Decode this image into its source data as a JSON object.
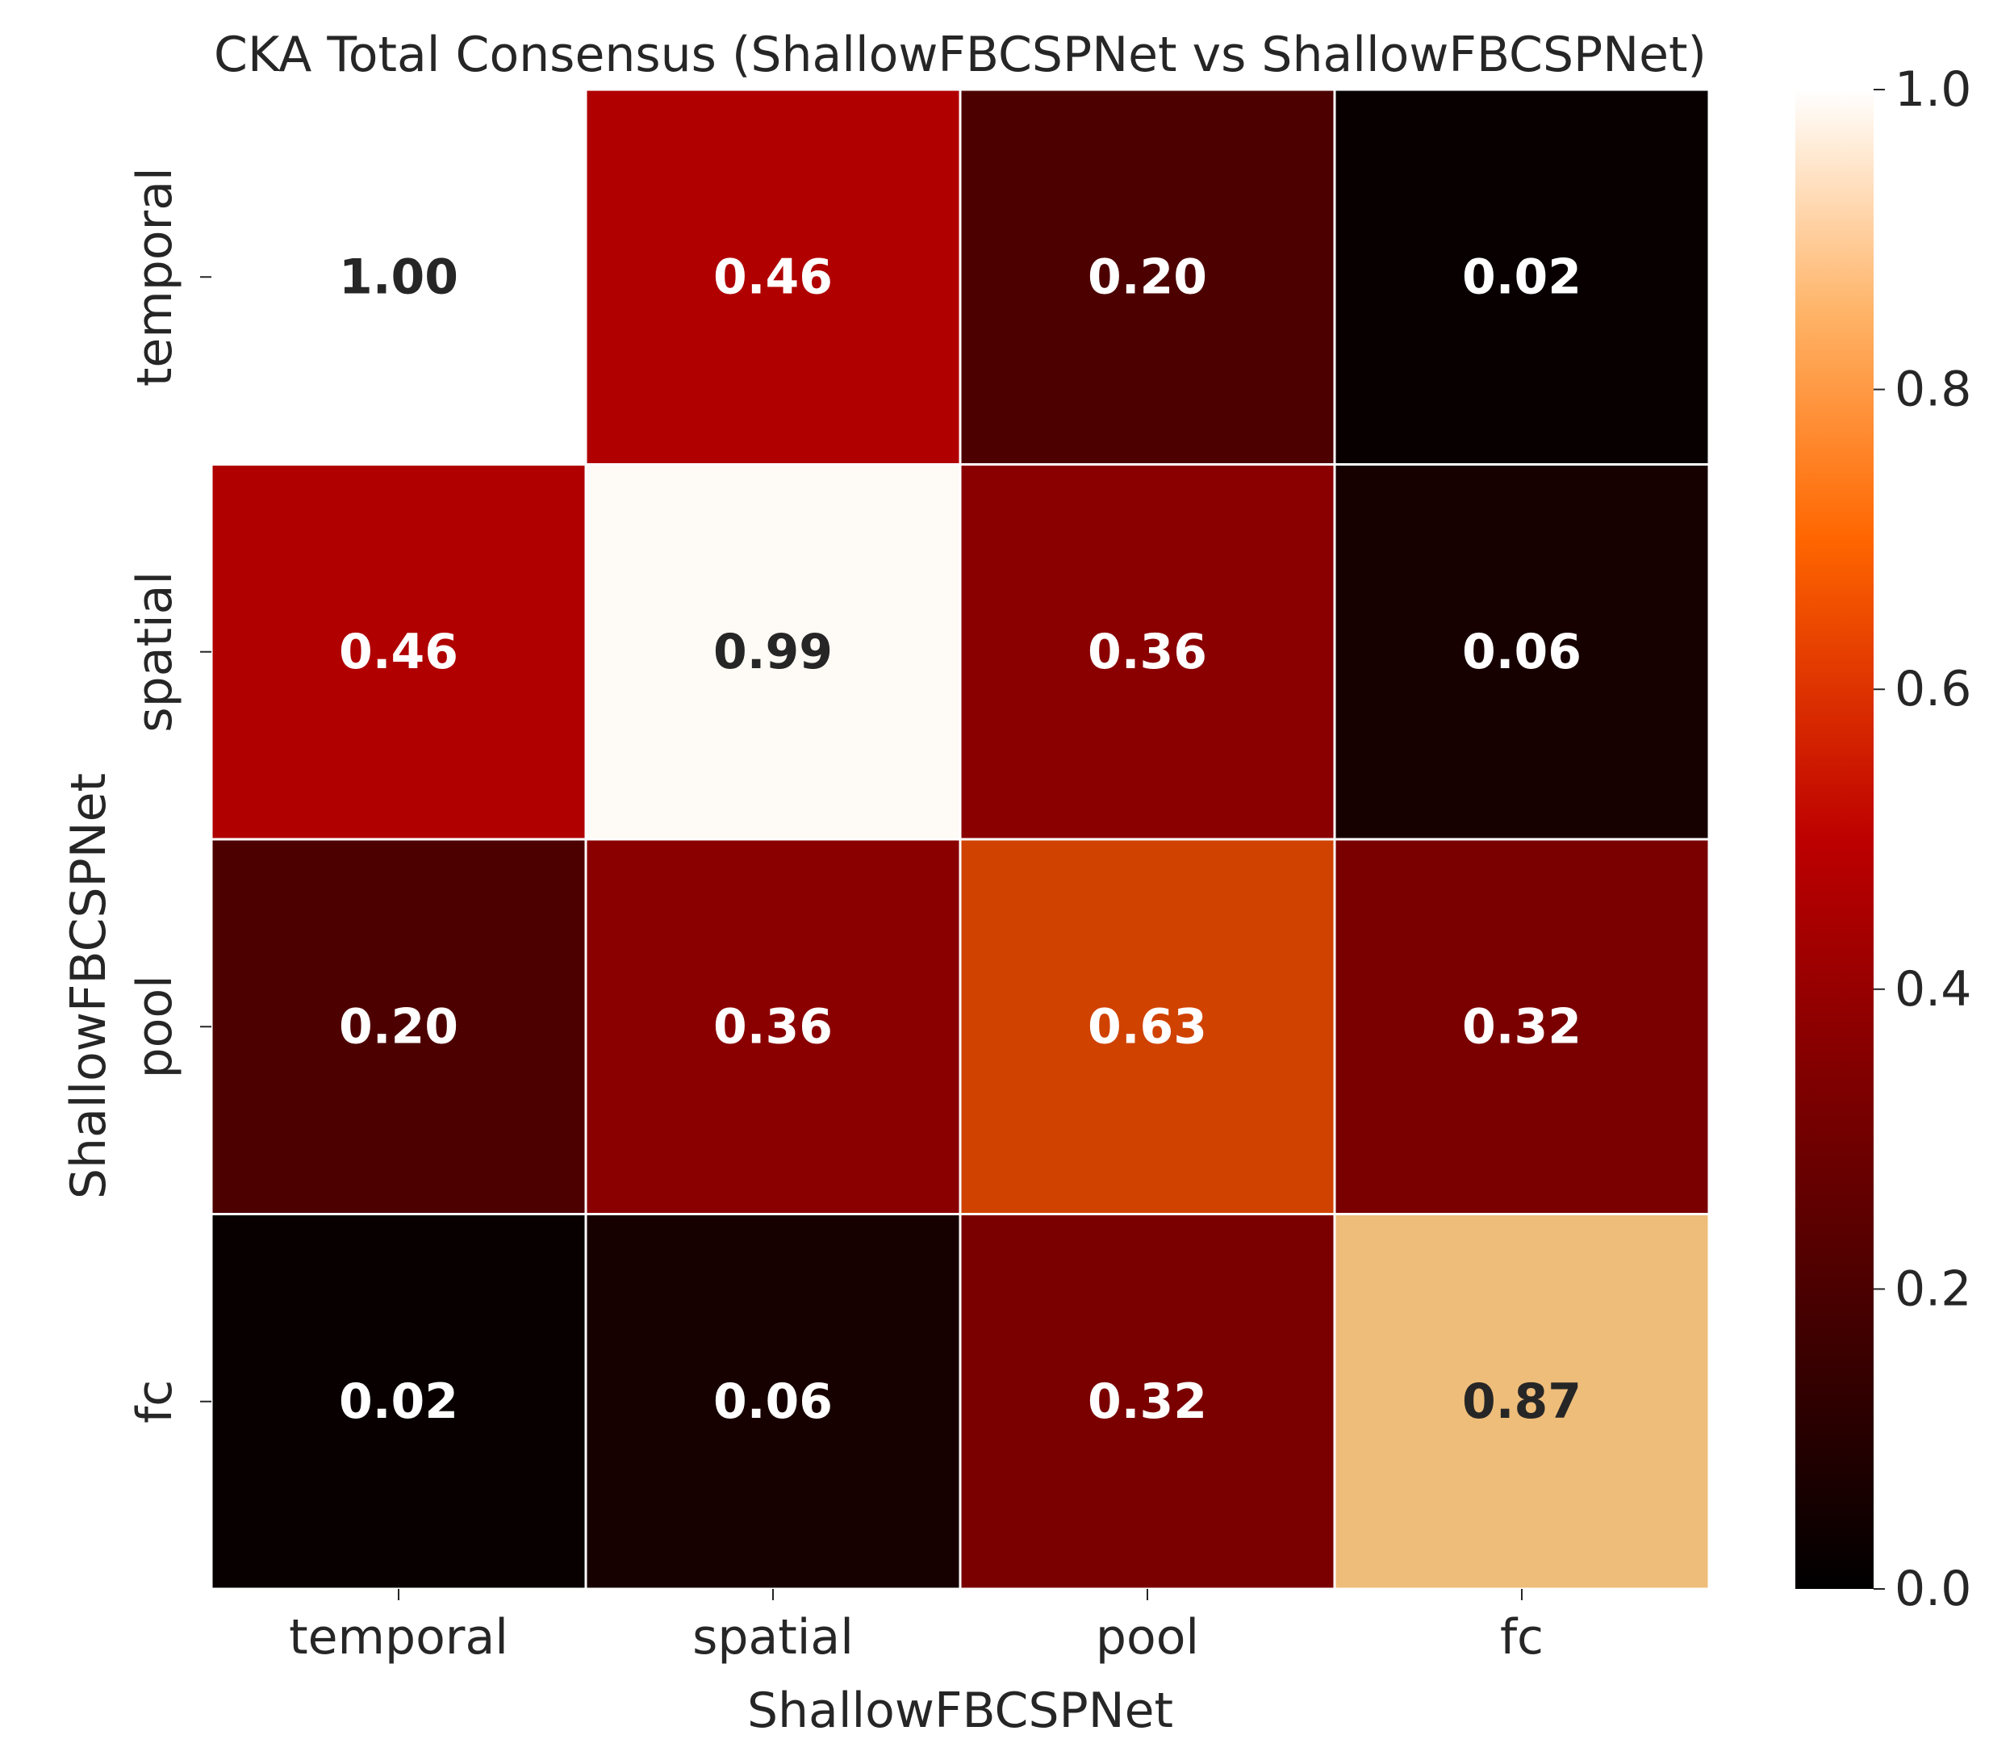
{
  "chart_data": {
    "type": "heatmap",
    "title": "CKA Total Consensus (ShallowFBCSPNet vs ShallowFBCSPNet)",
    "xlabel": "ShallowFBCSPNet",
    "ylabel": "ShallowFBCSPNet",
    "x_categories": [
      "temporal",
      "spatial",
      "pool",
      "fc"
    ],
    "y_categories": [
      "temporal",
      "spatial",
      "pool",
      "fc"
    ],
    "values": [
      [
        1.0,
        0.46,
        0.2,
        0.02
      ],
      [
        0.46,
        0.99,
        0.36,
        0.06
      ],
      [
        0.2,
        0.36,
        0.63,
        0.32
      ],
      [
        0.02,
        0.06,
        0.32,
        0.87
      ]
    ],
    "value_labels": [
      [
        "1.00",
        "0.46",
        "0.20",
        "0.02"
      ],
      [
        "0.46",
        "0.99",
        "0.36",
        "0.06"
      ],
      [
        "0.20",
        "0.36",
        "0.63",
        "0.32"
      ],
      [
        "0.02",
        "0.06",
        "0.32",
        "0.87"
      ]
    ],
    "colormap": "gist_heat",
    "colorbar": {
      "range": [
        0.0,
        1.0
      ],
      "ticks": [
        0.0,
        0.2,
        0.4,
        0.6,
        0.8,
        1.0
      ],
      "tick_labels": [
        "0.0",
        "0.2",
        "0.4",
        "0.6",
        "0.8",
        "1.0"
      ],
      "placement": "right"
    },
    "grid": false,
    "cell_border_color": "#ffffff",
    "label_color_light": "#ffffff",
    "label_color_dark": "#262626"
  }
}
